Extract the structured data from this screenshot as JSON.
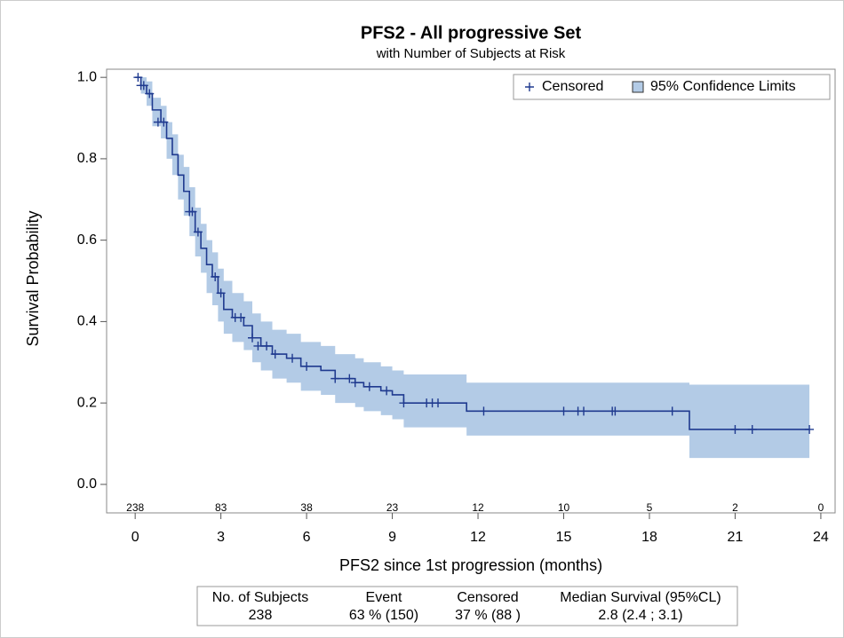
{
  "chart_data": {
    "type": "survival",
    "title": "PFS2 - All progressive Set",
    "subtitle": "with Number of Subjects at Risk",
    "x_label": "PFS2 since 1st progression (months)",
    "y_label": "Survival Probability",
    "xlim": [
      -1,
      24.5
    ],
    "ylim": [
      -0.07,
      1.02
    ],
    "xticks": [
      0,
      3,
      6,
      9,
      12,
      15,
      18,
      21,
      24
    ],
    "yticks": [
      {
        "value": 0,
        "label": "0.0"
      },
      {
        "value": 0.2,
        "label": "0.2"
      },
      {
        "value": 0.4,
        "label": "0.4"
      },
      {
        "value": 0.6,
        "label": "0.6"
      },
      {
        "value": 0.8,
        "label": "0.8"
      },
      {
        "value": 1,
        "label": "1.0"
      }
    ],
    "at_risk": [
      238,
      83,
      38,
      23,
      12,
      10,
      5,
      2,
      0
    ],
    "legend": "top-right",
    "step": {
      "color": "#1f3a8f",
      "x": [
        0,
        0.2,
        0.4,
        0.6,
        0.9,
        1.1,
        1.3,
        1.5,
        1.7,
        1.9,
        2.1,
        2.3,
        2.5,
        2.7,
        2.9,
        3.1,
        3.4,
        3.8,
        4.1,
        4.4,
        4.8,
        5.3,
        5.8,
        6.5,
        7.0,
        7.7,
        8.0,
        8.6,
        9.0,
        9.4,
        11.6,
        19.4,
        23.6
      ],
      "values": [
        1.0,
        0.98,
        0.96,
        0.92,
        0.89,
        0.85,
        0.81,
        0.76,
        0.72,
        0.67,
        0.62,
        0.58,
        0.54,
        0.51,
        0.47,
        0.43,
        0.41,
        0.39,
        0.36,
        0.34,
        0.32,
        0.31,
        0.29,
        0.28,
        0.26,
        0.25,
        0.24,
        0.23,
        0.22,
        0.2,
        0.18,
        0.135,
        0.135
      ]
    },
    "band": {
      "name": "95% Confidence Limits",
      "color": "#b3cbe6",
      "lower": [
        1.0,
        0.96,
        0.93,
        0.88,
        0.85,
        0.8,
        0.76,
        0.7,
        0.66,
        0.61,
        0.56,
        0.52,
        0.47,
        0.44,
        0.4,
        0.37,
        0.35,
        0.33,
        0.3,
        0.28,
        0.26,
        0.25,
        0.23,
        0.22,
        0.2,
        0.19,
        0.18,
        0.17,
        0.16,
        0.14,
        0.12,
        0.065,
        0.065
      ],
      "upper": [
        1.0,
        1.0,
        0.99,
        0.95,
        0.93,
        0.89,
        0.86,
        0.81,
        0.78,
        0.73,
        0.68,
        0.64,
        0.6,
        0.57,
        0.53,
        0.5,
        0.47,
        0.45,
        0.42,
        0.4,
        0.38,
        0.37,
        0.35,
        0.34,
        0.32,
        0.31,
        0.3,
        0.29,
        0.28,
        0.27,
        0.25,
        0.245,
        0.245
      ]
    },
    "censored": {
      "name": "Censored",
      "color": "#1f3a8f",
      "x": [
        0.1,
        0.2,
        0.3,
        0.5,
        0.8,
        1.0,
        1.9,
        2.0,
        2.2,
        2.8,
        3.0,
        3.5,
        3.7,
        4.1,
        4.3,
        4.6,
        4.9,
        5.5,
        6.0,
        7.0,
        7.5,
        7.7,
        8.2,
        8.8,
        9.4,
        10.2,
        10.4,
        10.6,
        12.2,
        15.0,
        15.5,
        15.7,
        16.7,
        16.8,
        18.8,
        21.0,
        21.6,
        23.6
      ],
      "values": [
        1.0,
        0.98,
        0.98,
        0.96,
        0.89,
        0.89,
        0.67,
        0.67,
        0.62,
        0.51,
        0.47,
        0.41,
        0.41,
        0.36,
        0.34,
        0.34,
        0.32,
        0.31,
        0.29,
        0.26,
        0.26,
        0.25,
        0.24,
        0.23,
        0.2,
        0.2,
        0.2,
        0.2,
        0.18,
        0.18,
        0.18,
        0.18,
        0.18,
        0.18,
        0.18,
        0.135,
        0.135,
        0.135
      ]
    }
  },
  "summary_table": {
    "columns": [
      "No. of Subjects",
      "Event",
      "Censored",
      "Median Survival (95%CL)"
    ],
    "rows": [
      [
        "238",
        "63 % (150)",
        "37 % (88 )",
        "2.8 (2.4 ; 3.1)"
      ]
    ]
  }
}
